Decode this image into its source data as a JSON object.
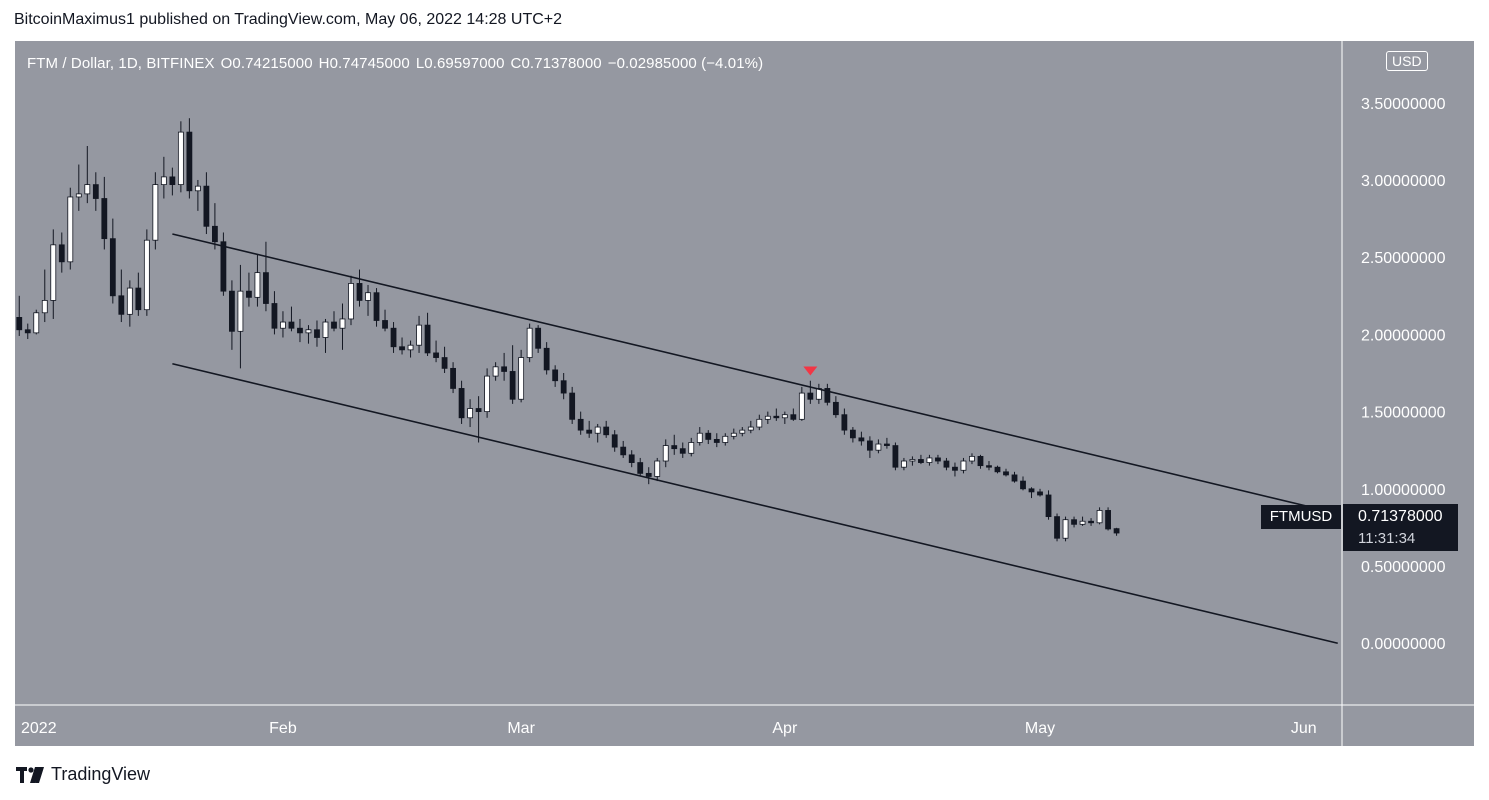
{
  "publisher": "BitcoinMaximus1 published on TradingView.com, May 06, 2022 14:28 UTC+2",
  "brand": "TradingView",
  "legend": {
    "symbol": "FTM / Dollar, 1D, BITFINEX",
    "open": "O0.74215000",
    "high": "H0.74745000",
    "low": "L0.69597000",
    "close": "C0.71378000",
    "change": "−0.02985000 (−4.01%)"
  },
  "currency": "USD",
  "last_price": {
    "ticker": "FTMUSD",
    "value": "0.71378000",
    "countdown": "11:31:34"
  },
  "colors": {
    "background": "#9598a1",
    "up": "#ffffff",
    "down": "#131722",
    "marker": "#f23645"
  },
  "chart_data": {
    "type": "candlestick",
    "x_start": "2022-01-01",
    "x_end": "2022-06-06",
    "ylim": [
      -0.4,
      3.9
    ],
    "y_ticks": [
      "3.50000000",
      "3.00000000",
      "2.50000000",
      "2.00000000",
      "1.50000000",
      "1.00000000",
      "0.50000000",
      "0.00000000"
    ],
    "x_ticks": [
      {
        "label": "2022",
        "date": "2022-01-01"
      },
      {
        "label": "Feb",
        "date": "2022-02-01"
      },
      {
        "label": "Mar",
        "date": "2022-03-01"
      },
      {
        "label": "Apr",
        "date": "2022-04-01"
      },
      {
        "label": "May",
        "date": "2022-05-01"
      },
      {
        "label": "Jun",
        "date": "2022-06-01"
      }
    ],
    "candles": [
      [
        "2022-01-01",
        2.11,
        2.25,
        1.99,
        2.03
      ],
      [
        "2022-01-02",
        2.03,
        2.07,
        1.97,
        2.01
      ],
      [
        "2022-01-03",
        2.01,
        2.16,
        2.0,
        2.14
      ],
      [
        "2022-01-04",
        2.14,
        2.42,
        2.08,
        2.22
      ],
      [
        "2022-01-05",
        2.22,
        2.68,
        2.1,
        2.58
      ],
      [
        "2022-01-06",
        2.58,
        2.66,
        2.4,
        2.47
      ],
      [
        "2022-01-07",
        2.47,
        2.95,
        2.42,
        2.89
      ],
      [
        "2022-01-08",
        2.89,
        3.1,
        2.8,
        2.91
      ],
      [
        "2022-01-09",
        2.91,
        3.22,
        2.85,
        2.97
      ],
      [
        "2022-01-10",
        2.97,
        3.05,
        2.8,
        2.88
      ],
      [
        "2022-01-11",
        2.88,
        3.02,
        2.55,
        2.62
      ],
      [
        "2022-01-12",
        2.62,
        2.75,
        2.2,
        2.25
      ],
      [
        "2022-01-13",
        2.25,
        2.42,
        2.08,
        2.13
      ],
      [
        "2022-01-14",
        2.13,
        2.35,
        2.05,
        2.3
      ],
      [
        "2022-01-15",
        2.3,
        2.4,
        2.12,
        2.16
      ],
      [
        "2022-01-16",
        2.16,
        2.68,
        2.12,
        2.61
      ],
      [
        "2022-01-17",
        2.61,
        3.05,
        2.55,
        2.97
      ],
      [
        "2022-01-18",
        2.97,
        3.15,
        2.88,
        3.02
      ],
      [
        "2022-01-19",
        3.02,
        3.08,
        2.9,
        2.97
      ],
      [
        "2022-01-20",
        2.97,
        3.38,
        2.92,
        3.31
      ],
      [
        "2022-01-21",
        3.31,
        3.4,
        2.88,
        2.93
      ],
      [
        "2022-01-22",
        2.93,
        3.0,
        2.8,
        2.96
      ],
      [
        "2022-01-23",
        2.96,
        3.05,
        2.65,
        2.7
      ],
      [
        "2022-01-24",
        2.7,
        2.85,
        2.55,
        2.6
      ],
      [
        "2022-01-25",
        2.6,
        2.66,
        2.25,
        2.28
      ],
      [
        "2022-01-26",
        2.28,
        2.35,
        1.9,
        2.02
      ],
      [
        "2022-01-27",
        2.02,
        2.45,
        1.78,
        2.28
      ],
      [
        "2022-01-28",
        2.28,
        2.4,
        2.18,
        2.24
      ],
      [
        "2022-01-29",
        2.24,
        2.52,
        2.18,
        2.4
      ],
      [
        "2022-01-30",
        2.4,
        2.6,
        2.15,
        2.2
      ],
      [
        "2022-01-31",
        2.2,
        2.28,
        2.0,
        2.04
      ],
      [
        "2022-02-01",
        2.04,
        2.15,
        1.98,
        2.08
      ],
      [
        "2022-02-02",
        2.08,
        2.18,
        2.02,
        2.04
      ],
      [
        "2022-02-03",
        2.04,
        2.1,
        1.95,
        2.01
      ],
      [
        "2022-02-04",
        2.01,
        2.06,
        1.94,
        2.03
      ],
      [
        "2022-02-05",
        2.03,
        2.09,
        1.92,
        1.98
      ],
      [
        "2022-02-06",
        1.98,
        2.1,
        1.88,
        2.08
      ],
      [
        "2022-02-07",
        2.08,
        2.15,
        2.02,
        2.04
      ],
      [
        "2022-02-08",
        2.04,
        2.2,
        1.9,
        2.1
      ],
      [
        "2022-02-09",
        2.1,
        2.38,
        2.06,
        2.33
      ],
      [
        "2022-02-10",
        2.33,
        2.42,
        2.18,
        2.22
      ],
      [
        "2022-02-11",
        2.22,
        2.32,
        2.12,
        2.27
      ],
      [
        "2022-02-12",
        2.27,
        2.3,
        2.05,
        2.09
      ],
      [
        "2022-02-13",
        2.09,
        2.16,
        2.02,
        2.04
      ],
      [
        "2022-02-14",
        2.04,
        2.08,
        1.88,
        1.92
      ],
      [
        "2022-02-15",
        1.92,
        1.98,
        1.87,
        1.9
      ],
      [
        "2022-02-16",
        1.9,
        1.96,
        1.85,
        1.93
      ],
      [
        "2022-02-17",
        1.93,
        2.12,
        1.88,
        2.06
      ],
      [
        "2022-02-18",
        2.06,
        2.14,
        1.86,
        1.88
      ],
      [
        "2022-02-19",
        1.88,
        1.96,
        1.82,
        1.85
      ],
      [
        "2022-02-20",
        1.85,
        1.92,
        1.75,
        1.78
      ],
      [
        "2022-02-21",
        1.78,
        1.82,
        1.62,
        1.65
      ],
      [
        "2022-02-22",
        1.65,
        1.7,
        1.42,
        1.46
      ],
      [
        "2022-02-23",
        1.46,
        1.58,
        1.4,
        1.52
      ],
      [
        "2022-02-24",
        1.52,
        1.6,
        1.3,
        1.5
      ],
      [
        "2022-02-25",
        1.5,
        1.78,
        1.46,
        1.73
      ],
      [
        "2022-02-26",
        1.73,
        1.82,
        1.7,
        1.79
      ],
      [
        "2022-02-27",
        1.79,
        1.88,
        1.7,
        1.76
      ],
      [
        "2022-02-28",
        1.76,
        1.93,
        1.55,
        1.58
      ],
      [
        "2022-03-01",
        1.58,
        1.9,
        1.56,
        1.85
      ],
      [
        "2022-03-02",
        1.85,
        2.07,
        1.82,
        2.04
      ],
      [
        "2022-03-03",
        2.04,
        2.06,
        1.88,
        1.91
      ],
      [
        "2022-03-04",
        1.91,
        1.95,
        1.74,
        1.77
      ],
      [
        "2022-03-05",
        1.77,
        1.8,
        1.66,
        1.7
      ],
      [
        "2022-03-06",
        1.7,
        1.75,
        1.58,
        1.62
      ],
      [
        "2022-03-07",
        1.62,
        1.66,
        1.42,
        1.45
      ],
      [
        "2022-03-08",
        1.45,
        1.5,
        1.35,
        1.38
      ],
      [
        "2022-03-09",
        1.38,
        1.44,
        1.33,
        1.36
      ],
      [
        "2022-03-10",
        1.36,
        1.42,
        1.3,
        1.4
      ],
      [
        "2022-03-11",
        1.4,
        1.44,
        1.33,
        1.35
      ],
      [
        "2022-03-12",
        1.35,
        1.38,
        1.24,
        1.27
      ],
      [
        "2022-03-13",
        1.27,
        1.31,
        1.2,
        1.22
      ],
      [
        "2022-03-14",
        1.22,
        1.25,
        1.14,
        1.17
      ],
      [
        "2022-03-15",
        1.17,
        1.2,
        1.08,
        1.1
      ],
      [
        "2022-03-16",
        1.1,
        1.14,
        1.03,
        1.08
      ],
      [
        "2022-03-17",
        1.08,
        1.2,
        1.05,
        1.18
      ],
      [
        "2022-03-18",
        1.18,
        1.32,
        1.14,
        1.28
      ],
      [
        "2022-03-19",
        1.28,
        1.35,
        1.22,
        1.26
      ],
      [
        "2022-03-20",
        1.26,
        1.3,
        1.2,
        1.23
      ],
      [
        "2022-03-21",
        1.23,
        1.33,
        1.21,
        1.3
      ],
      [
        "2022-03-22",
        1.3,
        1.4,
        1.28,
        1.36
      ],
      [
        "2022-03-23",
        1.36,
        1.38,
        1.29,
        1.32
      ],
      [
        "2022-03-24",
        1.32,
        1.36,
        1.27,
        1.3
      ],
      [
        "2022-03-25",
        1.3,
        1.36,
        1.28,
        1.34
      ],
      [
        "2022-03-26",
        1.34,
        1.39,
        1.32,
        1.36
      ],
      [
        "2022-03-27",
        1.36,
        1.4,
        1.34,
        1.38
      ],
      [
        "2022-03-28",
        1.38,
        1.44,
        1.36,
        1.4
      ],
      [
        "2022-03-29",
        1.4,
        1.48,
        1.38,
        1.45
      ],
      [
        "2022-03-30",
        1.45,
        1.5,
        1.42,
        1.47
      ],
      [
        "2022-03-31",
        1.47,
        1.52,
        1.44,
        1.46
      ],
      [
        "2022-04-01",
        1.46,
        1.5,
        1.42,
        1.48
      ],
      [
        "2022-04-02",
        1.48,
        1.52,
        1.44,
        1.45
      ],
      [
        "2022-04-03",
        1.45,
        1.66,
        1.44,
        1.62
      ],
      [
        "2022-04-04",
        1.62,
        1.7,
        1.55,
        1.58
      ],
      [
        "2022-04-05",
        1.58,
        1.68,
        1.55,
        1.65
      ],
      [
        "2022-04-06",
        1.65,
        1.68,
        1.54,
        1.56
      ],
      [
        "2022-04-07",
        1.56,
        1.6,
        1.46,
        1.48
      ],
      [
        "2022-04-08",
        1.48,
        1.52,
        1.35,
        1.38
      ],
      [
        "2022-04-09",
        1.38,
        1.4,
        1.3,
        1.33
      ],
      [
        "2022-04-10",
        1.33,
        1.37,
        1.28,
        1.31
      ],
      [
        "2022-04-11",
        1.31,
        1.34,
        1.2,
        1.25
      ],
      [
        "2022-04-12",
        1.25,
        1.32,
        1.23,
        1.29
      ],
      [
        "2022-04-13",
        1.29,
        1.33,
        1.26,
        1.28
      ],
      [
        "2022-04-14",
        1.28,
        1.3,
        1.12,
        1.14
      ],
      [
        "2022-04-15",
        1.14,
        1.2,
        1.12,
        1.18
      ],
      [
        "2022-04-16",
        1.18,
        1.21,
        1.15,
        1.19
      ],
      [
        "2022-04-17",
        1.19,
        1.22,
        1.16,
        1.17
      ],
      [
        "2022-04-18",
        1.17,
        1.22,
        1.15,
        1.2
      ],
      [
        "2022-04-19",
        1.2,
        1.22,
        1.16,
        1.18
      ],
      [
        "2022-04-20",
        1.18,
        1.2,
        1.12,
        1.14
      ],
      [
        "2022-04-21",
        1.14,
        1.17,
        1.08,
        1.12
      ],
      [
        "2022-04-22",
        1.12,
        1.2,
        1.1,
        1.18
      ],
      [
        "2022-04-23",
        1.18,
        1.23,
        1.16,
        1.21
      ],
      [
        "2022-04-24",
        1.21,
        1.22,
        1.13,
        1.15
      ],
      [
        "2022-04-25",
        1.15,
        1.18,
        1.12,
        1.14
      ],
      [
        "2022-04-26",
        1.14,
        1.15,
        1.1,
        1.11
      ],
      [
        "2022-04-27",
        1.11,
        1.13,
        1.08,
        1.09
      ],
      [
        "2022-04-28",
        1.09,
        1.11,
        1.04,
        1.05
      ],
      [
        "2022-04-29",
        1.05,
        1.08,
        0.99,
        1.0
      ],
      [
        "2022-04-30",
        1.0,
        1.01,
        0.94,
        0.98
      ],
      [
        "2022-05-01",
        0.98,
        1.0,
        0.95,
        0.96
      ],
      [
        "2022-05-02",
        0.96,
        0.99,
        0.8,
        0.82
      ],
      [
        "2022-05-03",
        0.82,
        0.84,
        0.66,
        0.68
      ],
      [
        "2022-05-04",
        0.68,
        0.82,
        0.66,
        0.8
      ],
      [
        "2022-05-05",
        0.8,
        0.82,
        0.75,
        0.77
      ],
      [
        "2022-05-06",
        0.77,
        0.82,
        0.76,
        0.79
      ],
      [
        "2022-05-07",
        0.79,
        0.81,
        0.76,
        0.78
      ],
      [
        "2022-05-08",
        0.78,
        0.88,
        0.77,
        0.86
      ],
      [
        "2022-05-09",
        0.86,
        0.88,
        0.73,
        0.74
      ],
      [
        "2022-05-10",
        0.74215,
        0.74745,
        0.69597,
        0.71378
      ]
    ],
    "channel": {
      "upper": [
        [
          "2022-01-19",
          2.65
        ],
        [
          "2022-06-05",
          0.84
        ]
      ],
      "lower": [
        [
          "2022-01-19",
          1.81
        ],
        [
          "2022-06-05",
          0.0
        ]
      ]
    },
    "marker": {
      "type": "down-triangle",
      "date": "2022-04-04",
      "y": 1.76
    }
  }
}
